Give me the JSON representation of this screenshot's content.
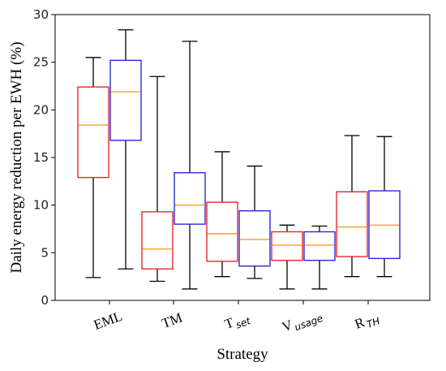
{
  "chart_data": {
    "type": "box",
    "title": "",
    "xlabel": "Strategy",
    "ylabel": "Daily energy reduction per EWH (%)",
    "ylim": [
      0,
      30
    ],
    "yticks": [
      0,
      5,
      10,
      15,
      20,
      25,
      30
    ],
    "categories": [
      {
        "label": "EML"
      },
      {
        "label": "TM"
      },
      {
        "label": "T",
        "sub": "set"
      },
      {
        "label": "V",
        "sub": "usage"
      },
      {
        "label": "R",
        "sub": "TH"
      }
    ],
    "series": [
      {
        "color": "#e8262a",
        "boxes": [
          {
            "whislo": 2.4,
            "q1": 12.9,
            "med": 18.4,
            "q3": 22.4,
            "whishi": 25.5
          },
          {
            "whislo": 2.0,
            "q1": 3.3,
            "med": 5.4,
            "q3": 9.3,
            "whishi": 23.5
          },
          {
            "whislo": 2.5,
            "q1": 4.1,
            "med": 7.0,
            "q3": 10.3,
            "whishi": 15.6
          },
          {
            "whislo": 1.2,
            "q1": 4.2,
            "med": 5.8,
            "q3": 7.2,
            "whishi": 7.9
          },
          {
            "whislo": 2.5,
            "q1": 4.6,
            "med": 7.7,
            "q3": 11.4,
            "whishi": 17.3
          }
        ]
      },
      {
        "color": "#2a2ad6",
        "boxes": [
          {
            "whislo": 3.3,
            "q1": 16.8,
            "med": 21.9,
            "q3": 25.2,
            "whishi": 28.4
          },
          {
            "whislo": 1.2,
            "q1": 8.0,
            "med": 10.0,
            "q3": 13.4,
            "whishi": 27.2
          },
          {
            "whislo": 2.3,
            "q1": 3.6,
            "med": 6.4,
            "q3": 9.4,
            "whishi": 14.1
          },
          {
            "whislo": 1.2,
            "q1": 4.2,
            "med": 5.8,
            "q3": 7.2,
            "whishi": 7.8
          },
          {
            "whislo": 2.5,
            "q1": 4.4,
            "med": 7.9,
            "q3": 11.5,
            "whishi": 17.2
          }
        ]
      }
    ],
    "median_color": "#f5a020",
    "whisker_color": "#000000",
    "grid": false,
    "legend": "none"
  }
}
